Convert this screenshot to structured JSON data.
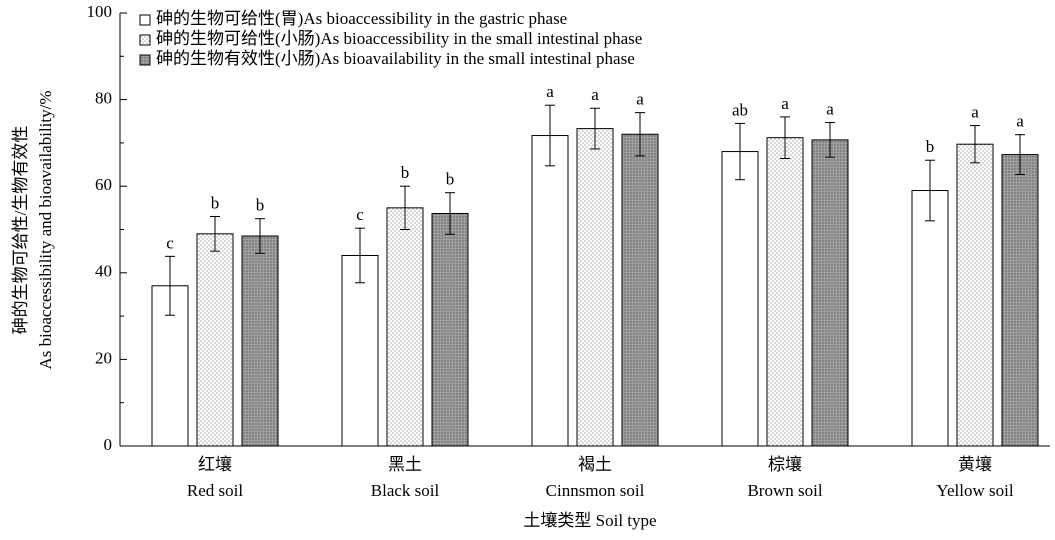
{
  "chart_data": {
    "type": "bar",
    "xlabel": "土壤类型 Soil type",
    "ylabel": [
      "砷的生物可给性/生物有效性",
      "As bioaccessibility and bioavailability/%"
    ],
    "categories": [
      [
        "红壤",
        "Red soil"
      ],
      [
        "黑土",
        "Black soil"
      ],
      [
        "褐土",
        "Cinnsmon soil"
      ],
      [
        "棕壤",
        "Brown soil"
      ],
      [
        "黄壤",
        "Yellow soil"
      ]
    ],
    "ylim": [
      0,
      100
    ],
    "yticks": [
      0,
      20,
      40,
      60,
      80,
      100
    ],
    "y_minor_ticks": [
      10,
      30,
      50,
      70,
      90
    ],
    "legend": "upper left",
    "series": [
      {
        "name": "砷的生物可给性(胃)As bioaccessibility in the gastric phase",
        "color": "#ffffff",
        "pattern": "none",
        "values": [
          37,
          44,
          71.7,
          68,
          59
        ],
        "errors": [
          6.8,
          6.3,
          7,
          6.5,
          7
        ],
        "labels": [
          "c",
          "c",
          "a",
          "ab",
          "b"
        ]
      },
      {
        "name": "砷的生物可给性(小肠)As bioaccessibility in the small intestinal phase",
        "color": "#f2f2f2",
        "pattern": "sparse-dots",
        "values": [
          49,
          55,
          73.3,
          71.2,
          69.7
        ],
        "errors": [
          4,
          5,
          4.7,
          4.8,
          4.3
        ],
        "labels": [
          "b",
          "b",
          "a",
          "a",
          "a"
        ]
      },
      {
        "name": "砷的生物有效性(小肠)As bioavailability in the small intestinal phase",
        "color": "#a0a0a0",
        "pattern": "dense-dots",
        "values": [
          48.5,
          53.7,
          72,
          70.7,
          67.3
        ],
        "errors": [
          4,
          4.8,
          5,
          4,
          4.6
        ],
        "labels": [
          "b",
          "b",
          "a",
          "a",
          "a"
        ]
      }
    ]
  }
}
